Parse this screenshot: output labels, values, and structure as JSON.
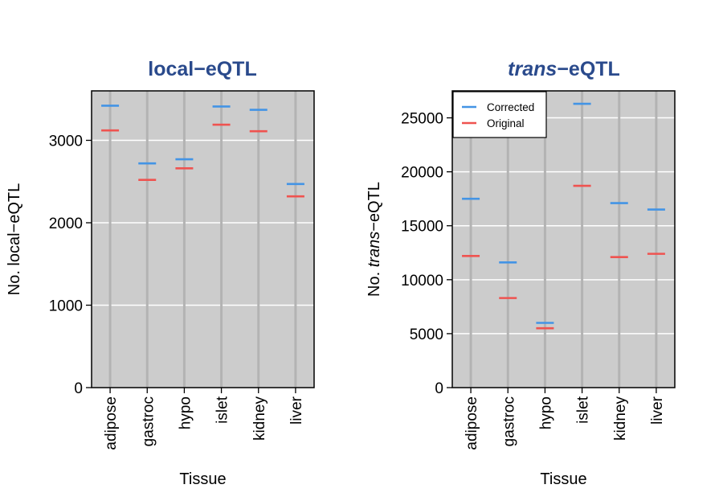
{
  "colors": {
    "corrected": "#4394e5",
    "original": "#ef5350",
    "title": "#2a4a8c",
    "panel_bg": "#cccccc",
    "gridline": "#ffffff",
    "category_line": "#b3b3b3"
  },
  "chart_data": [
    {
      "type": "scatter",
      "marker": "horizontal-dash",
      "title": "local−eQTL",
      "title_parts": [
        {
          "text": "local−eQTL",
          "italic": false
        }
      ],
      "xlabel": "Tissue",
      "ylabel": "No. local−eQTL",
      "ylabel_parts": [
        {
          "text": "No. local−eQTL",
          "italic": false
        }
      ],
      "categories": [
        "adipose",
        "gastroc",
        "hypo",
        "islet",
        "kidney",
        "liver"
      ],
      "ylim": [
        0,
        3600
      ],
      "yticks": [
        0,
        1000,
        2000,
        3000
      ],
      "ytick_labels": [
        "0",
        "1000",
        "2000",
        "3000"
      ],
      "grid": true,
      "legend": null,
      "series": [
        {
          "name": "Corrected",
          "color_key": "corrected",
          "values": [
            3420,
            2720,
            2770,
            3410,
            3370,
            2470
          ]
        },
        {
          "name": "Original",
          "color_key": "original",
          "values": [
            3120,
            2520,
            2660,
            3190,
            3110,
            2320
          ]
        }
      ]
    },
    {
      "type": "scatter",
      "marker": "horizontal-dash",
      "title": "trans−eQTL",
      "title_parts": [
        {
          "text": "trans",
          "italic": true
        },
        {
          "text": "−eQTL",
          "italic": false
        }
      ],
      "xlabel": "Tissue",
      "ylabel": "No. trans−eQTL",
      "ylabel_parts": [
        {
          "text": "No. ",
          "italic": false
        },
        {
          "text": "trans",
          "italic": true
        },
        {
          "text": "−eQTL",
          "italic": false
        }
      ],
      "categories": [
        "adipose",
        "gastroc",
        "hypo",
        "islet",
        "kidney",
        "liver"
      ],
      "ylim": [
        0,
        27500
      ],
      "yticks": [
        0,
        5000,
        10000,
        15000,
        20000,
        25000
      ],
      "ytick_labels": [
        "0",
        "5000",
        "10000",
        "15000",
        "20000",
        "25000"
      ],
      "grid": true,
      "legend": {
        "position": "top-left",
        "entries": [
          {
            "label": "Corrected",
            "color_key": "corrected"
          },
          {
            "label": "Original",
            "color_key": "original"
          }
        ]
      },
      "series": [
        {
          "name": "Corrected",
          "color_key": "corrected",
          "values": [
            17500,
            11600,
            6000,
            26300,
            17100,
            16500
          ]
        },
        {
          "name": "Original",
          "color_key": "original",
          "values": [
            12200,
            8300,
            5500,
            18700,
            12100,
            12400
          ]
        }
      ]
    }
  ]
}
